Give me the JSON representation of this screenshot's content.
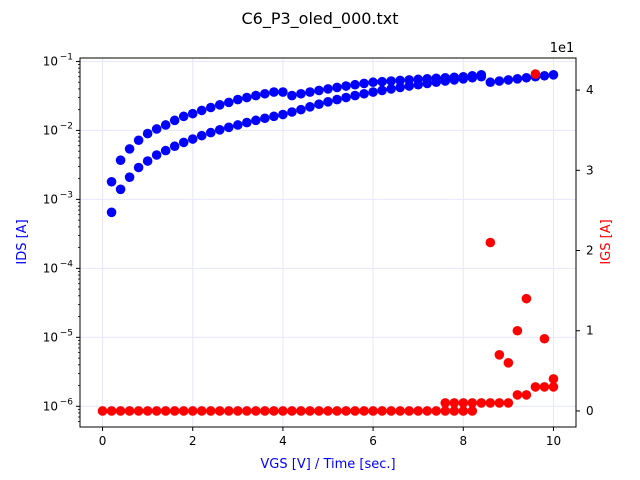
{
  "chart_data": {
    "type": "scatter",
    "title": "C6_P3_oled_000.txt",
    "xlabel": "VGS [V] / Time [sec.]",
    "ylabel_left": "IDS [A]",
    "ylabel_right": "IGS [A]",
    "right_axis_multiplier": "1e1",
    "xlim": [
      -0.5,
      10.5
    ],
    "ylim_left_log10": [
      -6.3,
      -0.95
    ],
    "ylim_right": [
      -0.2,
      4.4
    ],
    "grid": true,
    "xticks": [
      0,
      2,
      4,
      6,
      8,
      10
    ],
    "xtick_labels": [
      "0",
      "2",
      "4",
      "6",
      "8",
      "10"
    ],
    "yticks_left_exp": [
      -6,
      -5,
      -4,
      -3,
      -2,
      -1
    ],
    "yticks_right": [
      0,
      1,
      2,
      3,
      4
    ],
    "ytick_labels_right": [
      "0",
      "1",
      "2",
      "3",
      "4"
    ],
    "colors": {
      "ids": "#0000ff",
      "igs": "#ff0000",
      "grid": "#e6e6ff",
      "xlabel": "#0000ff"
    },
    "series": [
      {
        "axis": "left",
        "color": "#0000ff",
        "x": [
          0.2,
          0.4,
          0.6,
          0.8,
          1.0,
          1.2,
          1.4,
          1.6,
          1.8,
          2.0,
          2.2,
          2.4,
          2.6,
          2.8,
          3.0,
          3.2,
          3.4,
          3.6,
          3.8,
          4.0,
          4.2,
          4.4,
          4.6,
          4.8,
          5.0,
          5.2,
          5.4,
          5.6,
          5.8,
          6.0,
          6.2,
          6.4,
          6.6,
          6.8,
          7.0,
          7.2,
          7.4,
          7.6,
          7.8,
          8.0,
          8.2,
          8.4,
          8.6,
          8.8,
          9.0,
          9.2,
          9.4,
          9.6,
          9.8,
          10.0,
          0.2,
          0.4,
          0.6,
          0.8,
          1.0,
          1.2,
          1.4,
          1.6,
          1.8,
          2.0,
          2.2,
          2.4,
          2.6,
          2.8,
          3.0,
          3.2,
          3.4,
          3.6,
          3.8,
          4.0,
          4.2,
          4.4,
          4.6,
          4.8,
          5.0,
          5.2,
          5.4,
          5.6,
          5.8,
          6.0,
          6.2,
          6.4,
          6.6,
          6.8,
          7.0,
          7.2,
          7.4,
          7.6,
          7.8,
          8.0,
          8.2,
          8.4
        ],
        "y": [
          0.00065,
          0.0014,
          0.0021,
          0.0029,
          0.0036,
          0.0044,
          0.0051,
          0.0059,
          0.0067,
          0.0075,
          0.0084,
          0.0093,
          0.0102,
          0.0111,
          0.012,
          0.013,
          0.014,
          0.015,
          0.016,
          0.017,
          0.0185,
          0.02,
          0.022,
          0.024,
          0.026,
          0.028,
          0.03,
          0.032,
          0.034,
          0.036,
          0.038,
          0.04,
          0.042,
          0.044,
          0.046,
          0.048,
          0.05,
          0.052,
          0.054,
          0.056,
          0.058,
          0.06,
          0.05,
          0.052,
          0.054,
          0.056,
          0.058,
          0.06,
          0.062,
          0.064,
          0.0018,
          0.0037,
          0.0054,
          0.0072,
          0.009,
          0.0105,
          0.012,
          0.014,
          0.016,
          0.0175,
          0.0195,
          0.0215,
          0.0235,
          0.0255,
          0.028,
          0.03,
          0.032,
          0.034,
          0.036,
          0.036,
          0.032,
          0.034,
          0.036,
          0.038,
          0.04,
          0.042,
          0.044,
          0.046,
          0.048,
          0.05,
          0.051,
          0.052,
          0.053,
          0.054,
          0.055,
          0.056,
          0.057,
          0.058,
          0.059,
          0.06,
          0.062,
          0.064
        ]
      },
      {
        "axis": "right",
        "color": "#ff0000",
        "x": [
          0.0,
          0.2,
          0.4,
          0.6,
          0.8,
          1.0,
          1.2,
          1.4,
          1.6,
          1.8,
          2.0,
          2.2,
          2.4,
          2.6,
          2.8,
          3.0,
          3.2,
          3.4,
          3.6,
          3.8,
          4.0,
          4.2,
          4.4,
          4.6,
          4.8,
          5.0,
          5.2,
          5.4,
          5.6,
          5.8,
          6.0,
          6.2,
          6.4,
          6.6,
          6.8,
          7.0,
          7.2,
          7.4,
          7.6,
          7.8,
          8.0,
          8.2,
          8.4,
          8.6,
          8.8,
          9.0,
          9.2,
          9.4,
          9.6,
          9.8,
          10.0,
          7.6,
          7.8,
          8.0,
          8.2,
          8.6,
          8.8,
          9.0,
          9.2,
          9.4,
          9.6,
          9.8,
          10.0
        ],
        "y": [
          0,
          0,
          0,
          0,
          0,
          0,
          0,
          0,
          0,
          0,
          0,
          0,
          0,
          0,
          0,
          0,
          0,
          0,
          0,
          0,
          0,
          0,
          0,
          0,
          0,
          0,
          0,
          0,
          0,
          0,
          0,
          0,
          0,
          0,
          0,
          0,
          0,
          0,
          0,
          0,
          0,
          0,
          0.1,
          0.1,
          0.1,
          0.1,
          0.2,
          0.2,
          0.3,
          0.3,
          0.3,
          0.1,
          0.1,
          0.1,
          0.1,
          2.1,
          0.7,
          0.6,
          1.0,
          1.4,
          4.2,
          0.9,
          0.4
        ]
      }
    ]
  }
}
